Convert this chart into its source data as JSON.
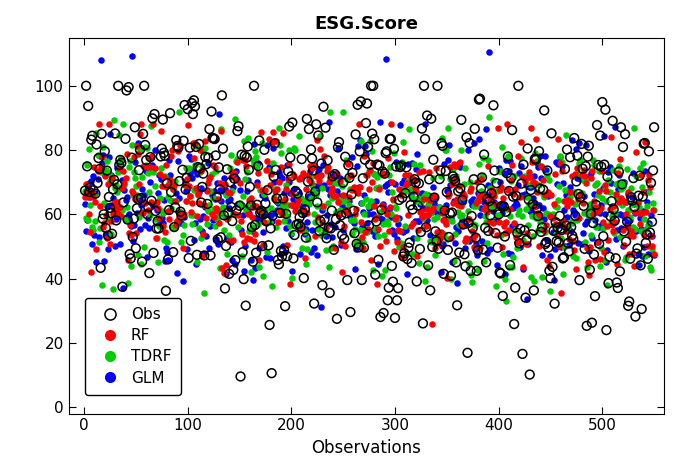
{
  "title": "ESG.Score",
  "xlabel": "Observations",
  "n_obs": 550,
  "xlim": [
    -15,
    560
  ],
  "ylim": [
    -2,
    115
  ],
  "yticks": [
    0,
    20,
    40,
    60,
    80,
    100
  ],
  "xticks": [
    0,
    100,
    200,
    300,
    400,
    500
  ],
  "obs_color": "black",
  "rf_color": "#FF0000",
  "tdrf_color": "#00CC00",
  "glm_color": "#0000FF",
  "marker_size_filled": 22,
  "marker_size_obs": 40,
  "seed": 99,
  "background_color": "white",
  "title_fontsize": 13,
  "label_fontsize": 12,
  "tick_fontsize": 11,
  "legend_fontsize": 11,
  "figwidth": 6.85,
  "figheight": 4.7,
  "dpi": 100
}
